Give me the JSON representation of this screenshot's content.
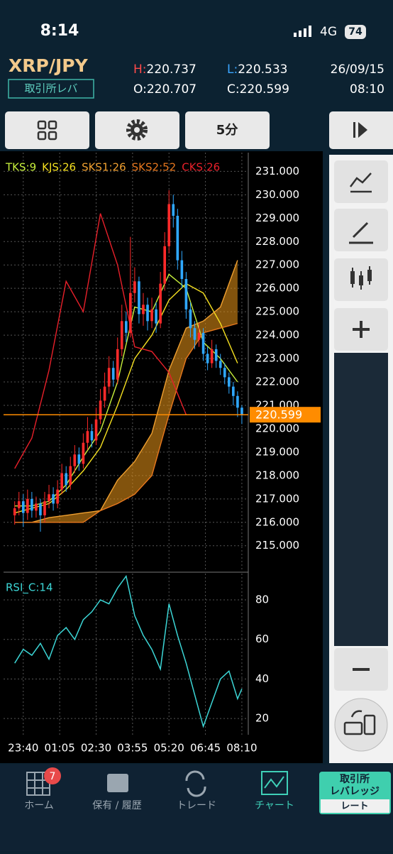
{
  "status": {
    "time": "8:14",
    "network": "4G",
    "battery": "74"
  },
  "header": {
    "pair": "XRP/JPY",
    "badge": "取引所レバ",
    "high_label": "H:",
    "high": "220.737",
    "low_label": "L:",
    "low": "220.533",
    "open_label": "O:",
    "open": "220.707",
    "close_label": "C:",
    "close": "220.599",
    "date": "26/09/15",
    "time": "08:10"
  },
  "toolbar": {
    "interval": "5分"
  },
  "nav": {
    "home": "ホーム",
    "home_badge": "7",
    "holdings": "保有 / 履歴",
    "trade": "トレード",
    "chart": "チャート",
    "exchange_1": "取引所",
    "exchange_2": "レバレッジ",
    "rate": "レート"
  },
  "chart_data": [
    {
      "type": "candlestick",
      "up_color": "#ff2a2a",
      "down_color": "#2fa8ff",
      "xlim": [
        -2.6,
        54.5
      ],
      "ylim": [
        213.9,
        231.8
      ],
      "xticks": [
        2,
        10.5,
        19,
        27.5,
        36,
        44.5,
        53
      ],
      "yticks": [
        {
          "value": 215,
          "label": "215.000"
        },
        {
          "value": 216,
          "label": "216.000"
        },
        {
          "value": 217,
          "label": "217.000"
        },
        {
          "value": 218,
          "label": "218.000"
        },
        {
          "value": 219,
          "label": "219.000"
        },
        {
          "value": 220,
          "label": "220.000"
        },
        {
          "value": 221,
          "label": "221.000"
        },
        {
          "value": 222,
          "label": "222.000"
        },
        {
          "value": 223,
          "label": "223.000"
        },
        {
          "value": 224,
          "label": "224.000"
        },
        {
          "value": 225,
          "label": "225.000"
        },
        {
          "value": 226,
          "label": "226.000"
        },
        {
          "value": 227,
          "label": "227.000"
        },
        {
          "value": 228,
          "label": "228.000"
        },
        {
          "value": 229,
          "label": "229.000"
        },
        {
          "value": 230,
          "label": "230.000"
        },
        {
          "value": 231,
          "label": "231.000"
        }
      ],
      "grid": true,
      "last_price": 220.599,
      "last_price_color": "#ff8c00",
      "cloud_color": "#d98a16",
      "x": [
        0,
        1,
        2,
        3,
        4,
        5,
        6,
        7,
        8,
        9,
        10,
        11,
        12,
        13,
        14,
        15,
        16,
        17,
        18,
        19,
        20,
        21,
        22,
        23,
        24,
        25,
        26,
        27,
        28,
        29,
        30,
        31,
        32,
        33,
        34,
        35,
        36,
        37,
        38,
        39,
        40,
        41,
        42,
        43,
        44,
        45,
        46,
        47,
        48,
        49,
        50,
        51,
        52,
        53
      ],
      "open": [
        216.3,
        216.6,
        216.9,
        216.4,
        217.0,
        216.5,
        216.8,
        216.3,
        216.9,
        217.2,
        216.8,
        217.4,
        218.1,
        217.6,
        218.4,
        218.9,
        218.5,
        219.4,
        219.9,
        219.5,
        220.4,
        221.2,
        221.8,
        222.6,
        222.1,
        223.4,
        224.6,
        224.1,
        225.8,
        226.3,
        224.9,
        225.3,
        224.6,
        225.1,
        224.5,
        226.2,
        227.8,
        229.6,
        229.1,
        227.2,
        226.4,
        225.1,
        224.3,
        223.8,
        224.1,
        223.2,
        222.8,
        223.4,
        222.9,
        222.6,
        222.2,
        221.8,
        221.4,
        220.9
      ],
      "high": [
        216.9,
        217.3,
        217.2,
        217.4,
        217.3,
        217.1,
        217.0,
        217.3,
        217.6,
        217.5,
        217.8,
        218.5,
        218.4,
        218.8,
        219.3,
        219.2,
        219.8,
        220.5,
        220.2,
        220.9,
        221.7,
        222.4,
        223.1,
        222.9,
        223.9,
        225.3,
        225.0,
        228.2,
        226.9,
        226.5,
        225.8,
        225.6,
        225.6,
        225.4,
        226.7,
        228.4,
        230.2,
        230.0,
        229.4,
        227.6,
        226.7,
        225.4,
        224.6,
        224.5,
        224.3,
        223.5,
        223.8,
        223.6,
        223.2,
        222.8,
        222.4,
        222.0,
        221.6,
        221.0
      ],
      "low": [
        215.9,
        216.3,
        215.8,
        216.1,
        216.2,
        216.2,
        215.6,
        216.0,
        216.6,
        216.5,
        216.6,
        217.2,
        217.3,
        217.4,
        218.1,
        218.2,
        218.3,
        219.1,
        219.2,
        219.3,
        220.2,
        220.9,
        221.5,
        221.8,
        221.9,
        223.1,
        223.7,
        223.9,
        225.4,
        224.5,
        224.4,
        224.2,
        224.3,
        224.1,
        224.3,
        225.9,
        227.5,
        228.6,
        226.8,
        226.0,
        224.7,
        223.9,
        223.4,
        223.5,
        222.9,
        222.5,
        222.6,
        222.6,
        222.3,
        221.9,
        221.5,
        221.0,
        220.5,
        220.2
      ],
      "close": [
        216.6,
        216.9,
        216.4,
        217.0,
        216.5,
        216.8,
        216.3,
        216.9,
        217.2,
        216.8,
        217.4,
        218.1,
        217.6,
        218.4,
        218.9,
        218.5,
        219.4,
        219.9,
        219.5,
        220.4,
        221.2,
        221.8,
        222.6,
        222.1,
        223.4,
        224.6,
        224.1,
        225.8,
        226.3,
        224.9,
        225.3,
        224.6,
        225.1,
        224.5,
        226.2,
        227.8,
        229.6,
        229.1,
        227.2,
        226.4,
        225.1,
        224.3,
        223.8,
        224.1,
        223.2,
        222.8,
        223.4,
        222.9,
        222.6,
        222.2,
        221.8,
        221.4,
        220.9,
        220.6
      ],
      "series": [
        {
          "name": "TKS:9",
          "color": "#c8f03c",
          "x": [
            0,
            4,
            8,
            12,
            16,
            20,
            24,
            28,
            32,
            36,
            40,
            44,
            48,
            52
          ],
          "values": [
            216.7,
            216.7,
            216.9,
            217.6,
            218.8,
            219.9,
            222.0,
            225.2,
            225.0,
            226.6,
            226.0,
            223.7,
            223.0,
            222.0
          ]
        },
        {
          "name": "KJS:26",
          "color": "#f5e020",
          "x": [
            0,
            4,
            8,
            12,
            16,
            20,
            24,
            28,
            32,
            36,
            40,
            44,
            48,
            52
          ],
          "values": [
            216.4,
            216.6,
            216.8,
            217.4,
            218.2,
            219.2,
            221.0,
            223.0,
            224.0,
            225.5,
            226.2,
            225.8,
            224.5,
            222.8
          ]
        },
        {
          "name": "SKS1:26",
          "color": "#f0a030",
          "x": [
            0,
            4,
            8,
            12,
            16,
            20,
            24,
            28,
            32,
            36,
            40,
            44,
            48,
            52
          ],
          "values": [
            216.0,
            216.0,
            216.2,
            216.3,
            216.4,
            216.5,
            217.8,
            218.6,
            219.8,
            222.5,
            224.3,
            224.6,
            225.2,
            227.2
          ]
        },
        {
          "name": "SKS2:52",
          "color": "#e8781e",
          "x": [
            0,
            4,
            8,
            12,
            16,
            20,
            24,
            28,
            32,
            36,
            40,
            44,
            48,
            52
          ],
          "values": [
            216.0,
            216.0,
            216.0,
            216.0,
            216.0,
            216.5,
            216.8,
            217.2,
            218.0,
            220.6,
            223.0,
            224.1,
            224.3,
            224.5
          ]
        },
        {
          "name": "CKS:26",
          "color": "#e8202a",
          "x": [
            0,
            4,
            8,
            12,
            16,
            20,
            24,
            28,
            32,
            36,
            40
          ],
          "values": [
            218.3,
            219.6,
            222.5,
            226.3,
            225.0,
            229.2,
            227.0,
            223.5,
            223.3,
            222.4,
            220.6
          ]
        }
      ]
    },
    {
      "type": "line",
      "xlim": [
        -2.6,
        54.5
      ],
      "ylim": [
        11.8,
        93.3
      ],
      "xticks": [
        {
          "value": 2,
          "label": "23:40"
        },
        {
          "value": 10.5,
          "label": "01:05"
        },
        {
          "value": 19,
          "label": "02:30"
        },
        {
          "value": 27.5,
          "label": "03:55"
        },
        {
          "value": 36,
          "label": "05:20"
        },
        {
          "value": 44.5,
          "label": "06:45"
        },
        {
          "value": 53,
          "label": "08:10"
        }
      ],
      "yticks": [
        20,
        40,
        60,
        80
      ],
      "grid": true,
      "series": [
        {
          "name": "RSI_C:14",
          "color": "#3cd6d6",
          "x": [
            0,
            2,
            4,
            6,
            8,
            10,
            12,
            14,
            16,
            18,
            20,
            22,
            24,
            26,
            28,
            30,
            32,
            34,
            36,
            38,
            40,
            42,
            44,
            46,
            48,
            50,
            52,
            53
          ],
          "values": [
            48,
            55,
            52,
            58,
            50,
            62,
            66,
            60,
            70,
            74,
            80,
            78,
            86,
            92,
            72,
            62,
            55,
            45,
            78,
            62,
            48,
            32,
            16,
            28,
            40,
            44,
            30,
            35
          ]
        }
      ]
    }
  ]
}
